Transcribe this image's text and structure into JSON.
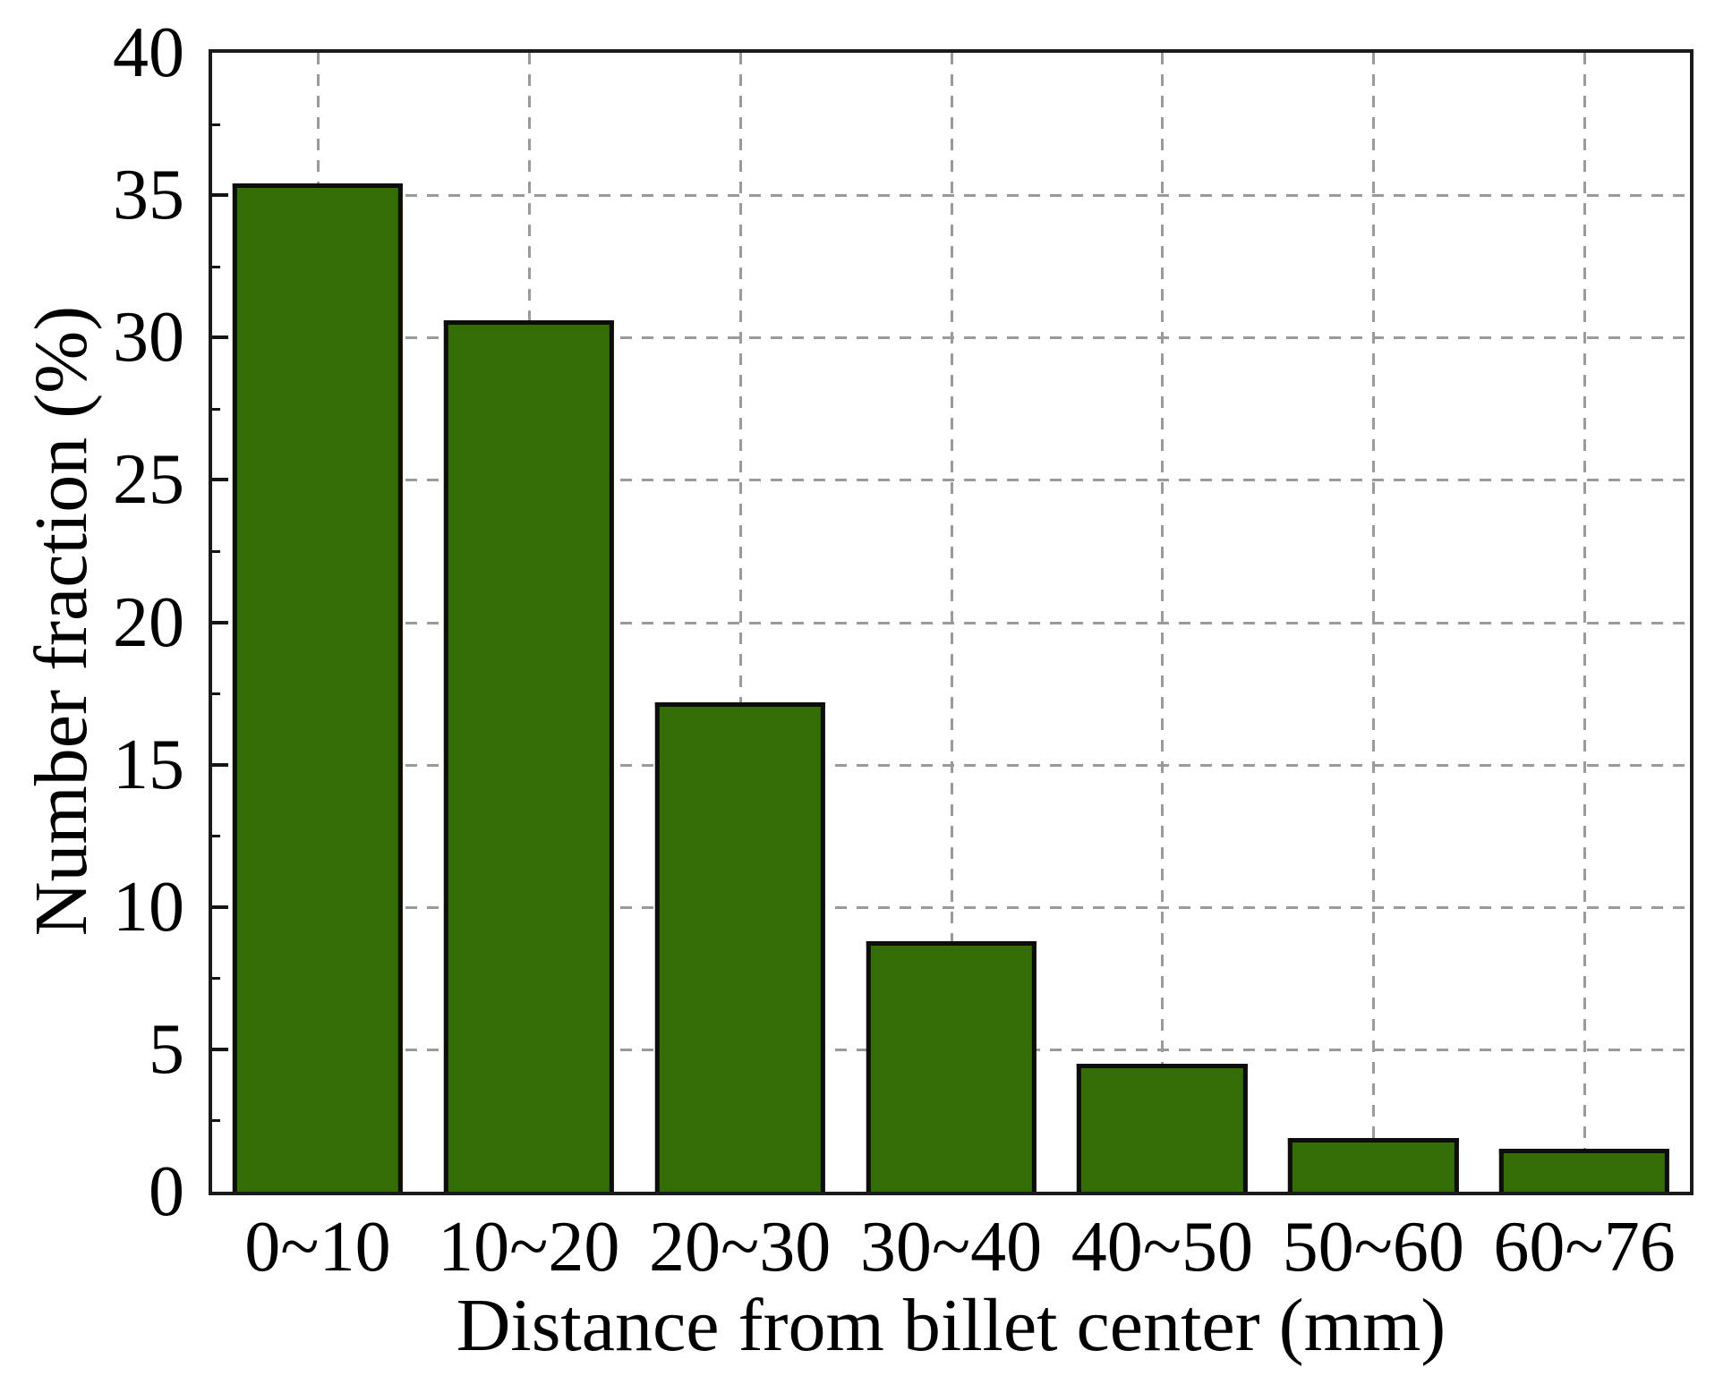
{
  "figure": {
    "background": "#ffffff",
    "frame_color": "#1b1b1b",
    "grid_color": "#9a9a9a",
    "tick_color": "#141414",
    "text_color": "#000000"
  },
  "chart_data": {
    "type": "bar",
    "title": "",
    "xlabel": "Distance from billet center (mm)",
    "ylabel": "Number fraction (%)",
    "categories": [
      "0~10",
      "10~20",
      "20~30",
      "30~40",
      "40~50",
      "50~60",
      "60~76"
    ],
    "values": [
      35.4,
      30.6,
      17.2,
      8.8,
      4.5,
      1.9,
      1.5
    ],
    "ylim": [
      0,
      40
    ],
    "y_major_ticks": [
      0,
      5,
      10,
      15,
      20,
      25,
      30,
      35,
      40
    ],
    "y_minor_ticks": [
      2.5,
      7.5,
      12.5,
      17.5,
      22.5,
      27.5,
      32.5,
      37.5
    ],
    "grid": {
      "horizontal": true,
      "vertical": true,
      "style": "dashed"
    },
    "legend_position": "none",
    "bar_fill": "#346D03",
    "bar_edge": "#0d0d0d",
    "bar_width_fraction_of_slot": 0.807
  }
}
